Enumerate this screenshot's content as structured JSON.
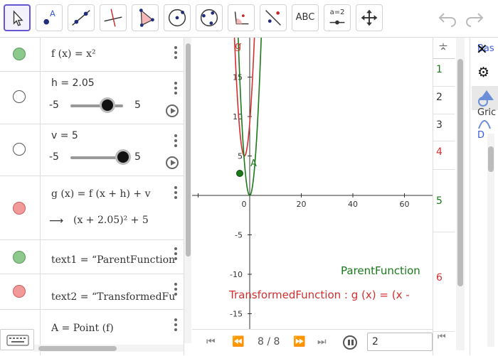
{
  "toolbar": {
    "text_tool_label": "ABC",
    "slider_tool_label": "a=2",
    "point_label": "A"
  },
  "algebra": {
    "f_def": "f (x)  =  x²",
    "h_def": "h = 2.05",
    "h_min": "-5",
    "h_max": "5",
    "h_value": 2.05,
    "v_def": "v = 5",
    "v_min": "-5",
    "v_max": "5",
    "v_value": 5,
    "g_def": "g (x) = f (x + h) + v",
    "g_arrow": "⟶",
    "g_result": "(x + 2.05)² + 5",
    "text1_def": "text1  =  “ParentFunction",
    "text2_def": "text2  =  “TransformedFu",
    "A_def": "A = Point (f)"
  },
  "graphics": {
    "g_label": "g",
    "A_label": "A",
    "parent_text": "ParentFunction",
    "transformed_text": "TransformedFunction : g (x)  =  (x -",
    "x_ticks": [
      "0",
      "20",
      "40",
      "60"
    ],
    "y_ticks": [
      "15",
      "10",
      "5",
      "-5",
      "-10",
      "-15"
    ]
  },
  "playbar": {
    "counter": "8 / 8",
    "speed_value": "2"
  },
  "spreadsheet": {
    "rows": [
      "1",
      "2",
      "3",
      "4",
      "5",
      "6"
    ]
  },
  "rightpanel": {
    "items": [
      "Bas",
      "Gric",
      "D"
    ]
  },
  "colors": {
    "accent": "#6557d2",
    "green": "#1a7a1a",
    "red": "#d32f2f",
    "green_marble": "#8dc98d",
    "red_marble": "#f29a9a"
  }
}
